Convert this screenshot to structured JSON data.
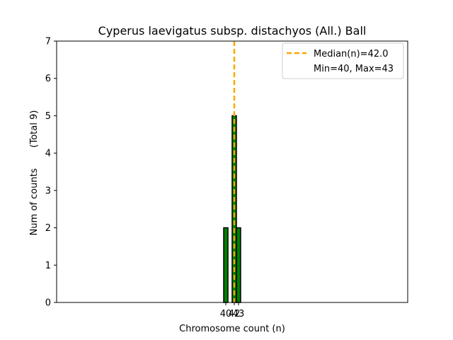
{
  "chart_data": {
    "type": "bar",
    "title": "Cyperus laevigatus subsp. distachyos (All.) Ball",
    "xlabel": "Chromosome count (n)",
    "ylabel": "Num of counts",
    "ylabel_secondary": "(Total 9)",
    "ylim": [
      0,
      7
    ],
    "yticks": [
      "0",
      "1",
      "2",
      "3",
      "4",
      "5",
      "6",
      "7"
    ],
    "xlim": [
      0,
      83
    ],
    "xticks": [
      {
        "value": 40,
        "label": "40"
      },
      {
        "value": 42,
        "label": "42"
      },
      {
        "value": 43,
        "label": "43"
      }
    ],
    "bins": [
      {
        "x": 40,
        "value": 2
      },
      {
        "x": 42,
        "value": 5
      },
      {
        "x": 43,
        "value": 2
      }
    ],
    "median": 42.0,
    "legend": {
      "placement": "top-right",
      "entries": [
        {
          "label": "Median(n)=42.0",
          "kind": "dashed-line"
        },
        {
          "label": "Min=40, Max=43",
          "kind": "none"
        }
      ]
    },
    "colors": {
      "bar_fill": "#008000",
      "bar_edge": "#000000",
      "median_line": "#FFA500"
    },
    "grid": false
  }
}
